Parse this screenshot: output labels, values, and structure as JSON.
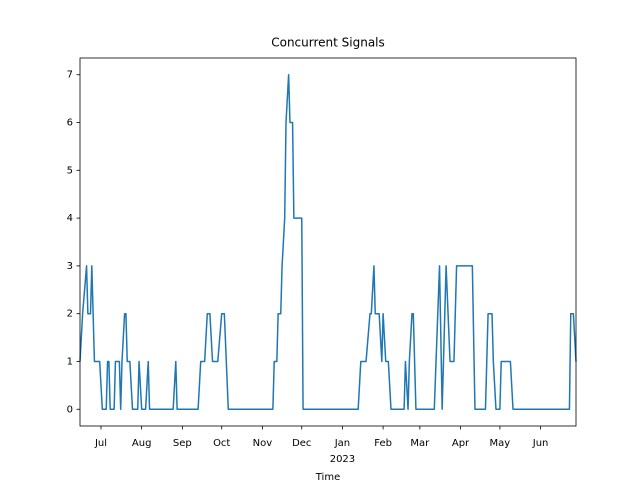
{
  "chart_data": {
    "type": "line",
    "title": "Concurrent Signals",
    "xlabel": "Time",
    "color": "#1f77b4",
    "x": [
      "2022-06-15",
      "2022-06-17",
      "2022-06-20",
      "2022-06-21",
      "2022-06-23",
      "2022-06-24",
      "2022-06-25",
      "2022-06-26",
      "2022-06-30",
      "2022-07-02",
      "2022-07-05",
      "2022-07-06",
      "2022-07-07",
      "2022-07-08",
      "2022-07-11",
      "2022-07-12",
      "2022-07-15",
      "2022-07-16",
      "2022-07-17",
      "2022-07-19",
      "2022-07-20",
      "2022-07-21",
      "2022-07-23",
      "2022-07-25",
      "2022-07-29",
      "2022-07-30",
      "2022-08-01",
      "2022-08-04",
      "2022-08-06",
      "2022-08-07",
      "2022-08-25",
      "2022-08-27",
      "2022-08-28",
      "2022-09-13",
      "2022-09-15",
      "2022-09-18",
      "2022-09-20",
      "2022-09-22",
      "2022-09-24",
      "2022-09-28",
      "2022-10-01",
      "2022-10-03",
      "2022-10-06",
      "2022-11-09",
      "2022-11-10",
      "2022-11-12",
      "2022-11-13",
      "2022-11-15",
      "2022-11-16",
      "2022-11-18",
      "2022-11-19",
      "2022-11-21",
      "2022-11-22",
      "2022-11-24",
      "2022-11-25",
      "2022-12-01",
      "2022-12-02",
      "2023-01-13",
      "2023-01-15",
      "2023-01-19",
      "2023-01-22",
      "2023-01-23",
      "2023-01-25",
      "2023-01-26",
      "2023-01-29",
      "2023-01-31",
      "2023-02-01",
      "2023-02-03",
      "2023-02-05",
      "2023-02-07",
      "2023-02-17",
      "2023-02-18",
      "2023-02-20",
      "2023-02-21",
      "2023-02-23",
      "2023-02-24",
      "2023-02-26",
      "2023-03-12",
      "2023-03-16",
      "2023-03-18",
      "2023-03-21",
      "2023-03-24",
      "2023-03-27",
      "2023-03-29",
      "2023-04-10",
      "2023-04-12",
      "2023-04-20",
      "2023-04-22",
      "2023-04-25",
      "2023-04-26",
      "2023-04-28",
      "2023-05-01",
      "2023-05-02",
      "2023-05-09",
      "2023-05-11",
      "2023-06-23",
      "2023-06-24",
      "2023-06-26",
      "2023-06-28"
    ],
    "values": [
      1,
      2,
      3,
      2,
      2,
      3,
      2,
      1,
      1,
      0,
      0,
      1,
      1,
      0,
      0,
      1,
      1,
      0,
      1,
      2,
      2,
      1,
      1,
      0,
      0,
      1,
      0,
      0,
      1,
      0,
      0,
      1,
      0,
      0,
      1,
      1,
      2,
      2,
      1,
      1,
      2,
      2,
      0,
      0,
      1,
      1,
      2,
      2,
      3,
      4,
      6,
      7,
      6,
      6,
      4,
      4,
      0,
      0,
      1,
      1,
      2,
      2,
      3,
      2,
      2,
      1,
      2,
      1,
      1,
      0,
      0,
      1,
      0,
      1,
      2,
      2,
      0,
      0,
      3,
      0,
      3,
      1,
      1,
      3,
      3,
      0,
      0,
      2,
      2,
      1,
      0,
      0,
      1,
      1,
      0,
      0,
      2,
      2,
      1
    ],
    "xlim": [
      "2022-06-15",
      "2023-06-28"
    ],
    "xticks": [
      {
        "value": "2022-07-01",
        "label": "Jul"
      },
      {
        "value": "2022-08-01",
        "label": "Aug"
      },
      {
        "value": "2022-09-01",
        "label": "Sep"
      },
      {
        "value": "2022-10-01",
        "label": "Oct"
      },
      {
        "value": "2022-11-01",
        "label": "Nov"
      },
      {
        "value": "2022-12-01",
        "label": "Dec"
      },
      {
        "value": "2023-01-01",
        "label": "Jan"
      },
      {
        "value": "2023-02-01",
        "label": "Feb"
      },
      {
        "value": "2023-03-01",
        "label": "Mar"
      },
      {
        "value": "2023-04-01",
        "label": "Apr"
      },
      {
        "value": "2023-05-01",
        "label": "May"
      },
      {
        "value": "2023-06-01",
        "label": "Jun"
      }
    ],
    "xticks_secondary": [
      {
        "value": "2023-01-01",
        "label": "2023"
      }
    ],
    "ylim": [
      -0.35,
      7.35
    ],
    "yticks": [
      0,
      1,
      2,
      3,
      4,
      5,
      6,
      7
    ],
    "grid": false
  }
}
